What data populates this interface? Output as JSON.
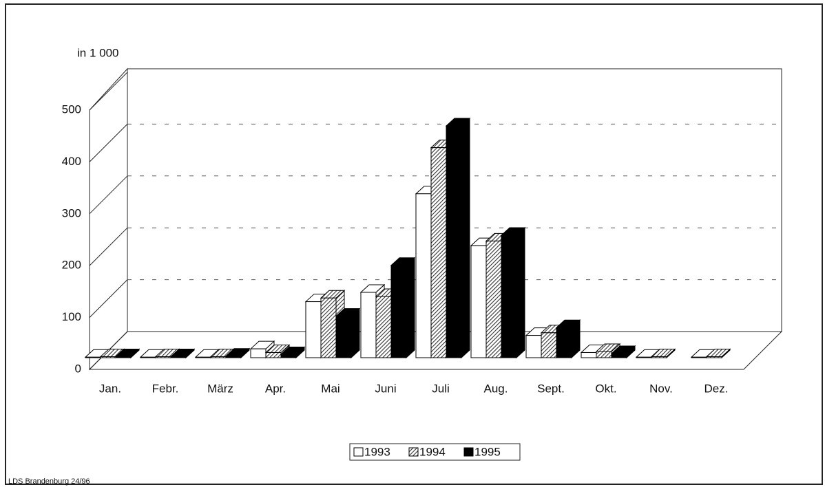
{
  "chart_data": {
    "type": "bar3d",
    "y_label": "in 1 000",
    "source": "LDS Brandenburg 24/96",
    "categories": [
      "Jan.",
      "Febr.",
      "März",
      "Apr.",
      "Mai",
      "Juni",
      "Juli",
      "Aug.",
      "Sept.",
      "Okt.",
      "Nov.",
      "Dez."
    ],
    "series": [
      {
        "name": "1993",
        "color": "#ffffff",
        "pattern": "solid",
        "values": [
          1,
          1,
          1,
          17,
          108,
          126,
          316,
          216,
          43,
          10,
          1,
          1
        ]
      },
      {
        "name": "1994",
        "color": "#555555",
        "pattern": "hatch",
        "values": [
          2,
          2,
          2,
          10,
          115,
          118,
          405,
          225,
          48,
          12,
          2,
          2
        ]
      },
      {
        "name": "1995",
        "color": "#000000",
        "pattern": "solid",
        "values": [
          2,
          2,
          3,
          6,
          80,
          178,
          447,
          236,
          58,
          8,
          null,
          null
        ]
      }
    ],
    "ylim": [
      0,
      500
    ],
    "yticks": [
      0,
      100,
      200,
      300,
      400,
      500
    ],
    "grid": true,
    "legend": "bottom"
  }
}
